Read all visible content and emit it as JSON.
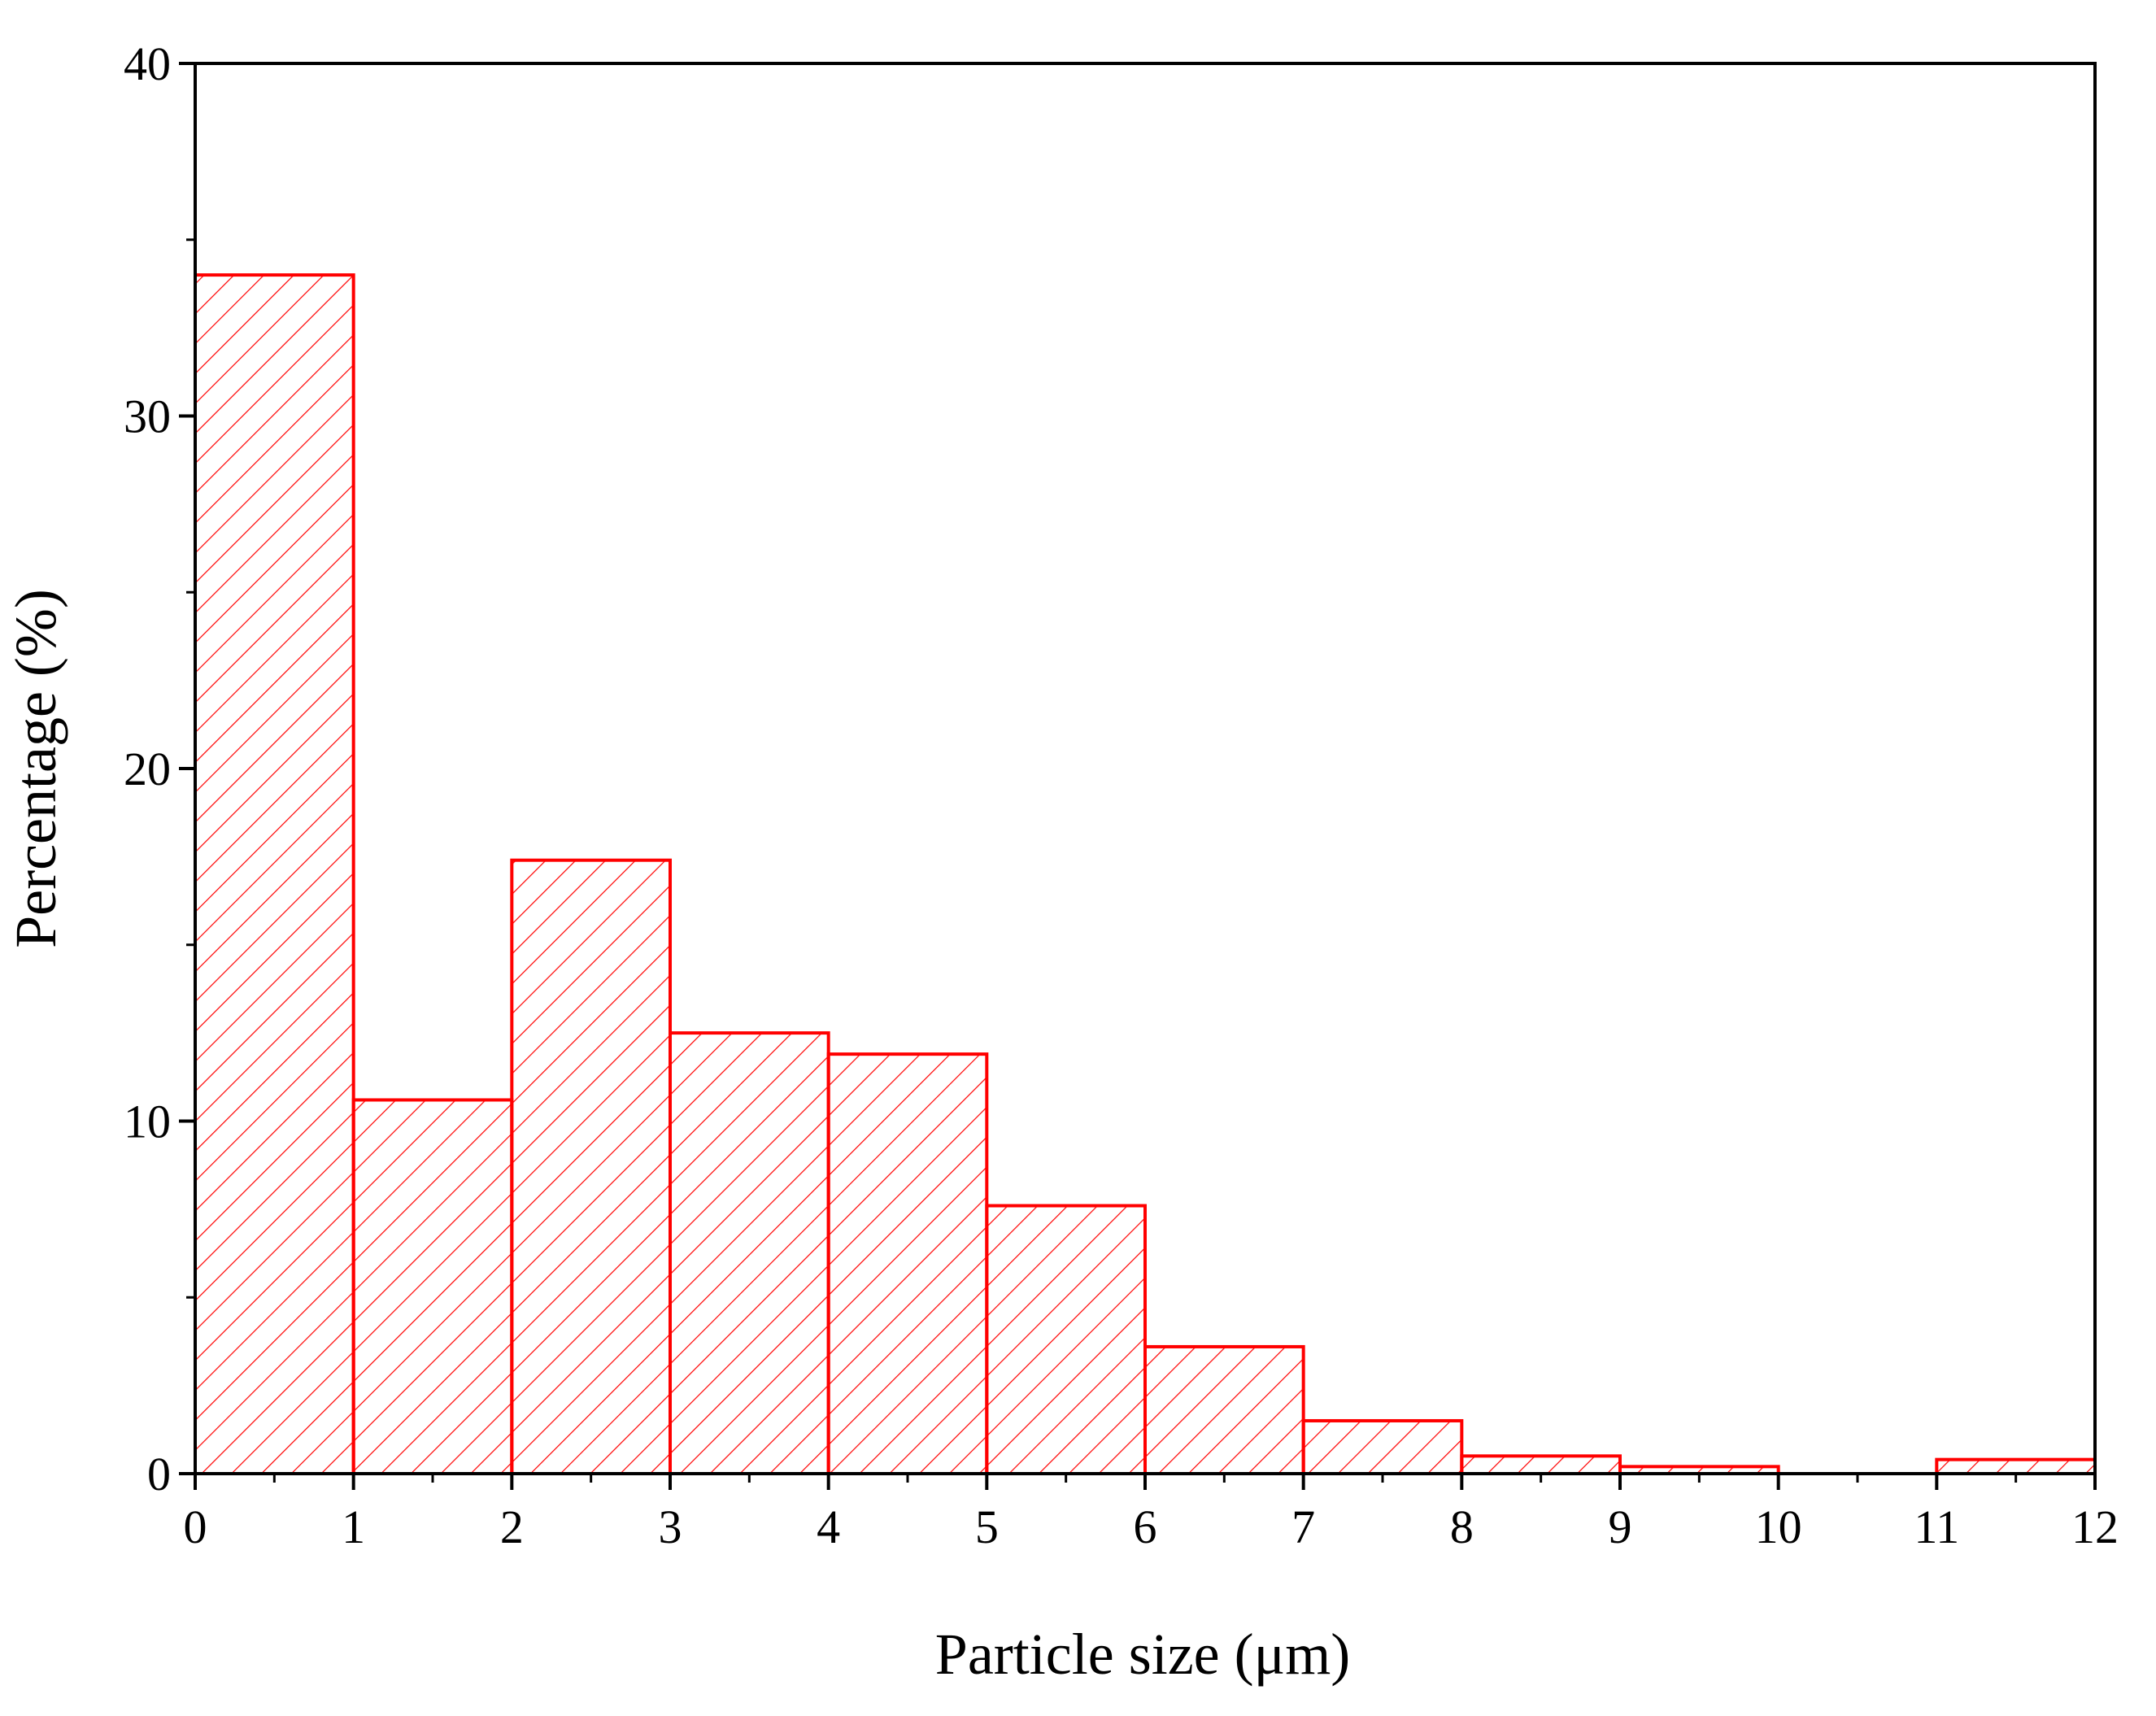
{
  "chart_data": {
    "type": "bar",
    "histogram": true,
    "bin_edges": [
      0,
      1,
      2,
      3,
      4,
      5,
      6,
      7,
      8,
      9,
      10,
      11,
      12
    ],
    "values": [
      34.0,
      10.6,
      17.4,
      12.5,
      11.9,
      7.6,
      3.6,
      1.5,
      0.5,
      0.2,
      0.0,
      0.4
    ],
    "xlabel": "Particle size (μm)",
    "ylabel": "Percentage (%)",
    "xlim": [
      0,
      12
    ],
    "ylim": [
      0,
      40
    ],
    "xticks": [
      "0",
      "1",
      "2",
      "3",
      "4",
      "5",
      "6",
      "7",
      "8",
      "9",
      "10",
      "11",
      "12"
    ],
    "yticks": [
      "0",
      "10",
      "20",
      "30",
      "40"
    ],
    "grid": false,
    "legend": "none",
    "colors": {
      "bar_edge": "#ff0000",
      "hatch": "#ff0000",
      "axis": "#000000"
    }
  }
}
